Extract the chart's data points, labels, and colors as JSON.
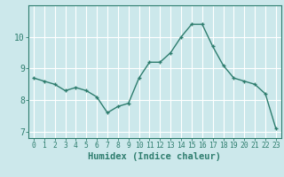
{
  "x": [
    0,
    1,
    2,
    3,
    4,
    5,
    6,
    7,
    8,
    9,
    10,
    11,
    12,
    13,
    14,
    15,
    16,
    17,
    18,
    19,
    20,
    21,
    22,
    23
  ],
  "y": [
    8.7,
    8.6,
    8.5,
    8.3,
    8.4,
    8.3,
    8.1,
    7.6,
    7.8,
    7.9,
    8.7,
    9.2,
    9.2,
    9.5,
    10.0,
    10.4,
    10.4,
    9.7,
    9.1,
    8.7,
    8.6,
    8.5,
    8.2,
    7.1
  ],
  "line_color": "#2e7d6e",
  "marker": "+",
  "marker_size": 3.5,
  "background_color": "#cce8eb",
  "grid_color": "#ffffff",
  "xlabel": "Humidex (Indice chaleur)",
  "ylim": [
    6.8,
    11.0
  ],
  "xlim": [
    -0.5,
    23.5
  ],
  "yticks": [
    7,
    8,
    9,
    10
  ],
  "xticks": [
    0,
    1,
    2,
    3,
    4,
    5,
    6,
    7,
    8,
    9,
    10,
    11,
    12,
    13,
    14,
    15,
    16,
    17,
    18,
    19,
    20,
    21,
    22,
    23
  ],
  "tick_color": "#2e7d6e",
  "axis_color": "#2e7d6e",
  "font_color": "#2e7d6e",
  "xlabel_fontsize": 7.5,
  "tick_fontsize": 5.8,
  "ytick_fontsize": 7.0,
  "line_width": 1.0
}
